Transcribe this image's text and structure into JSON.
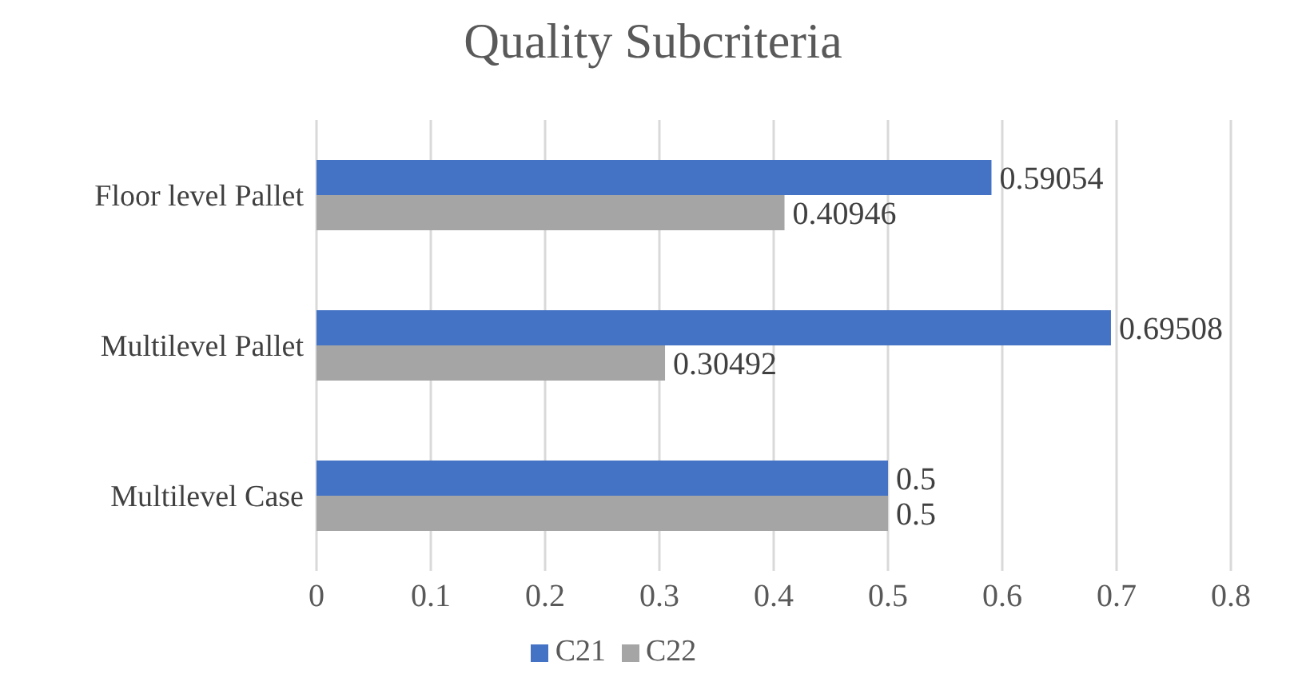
{
  "chart_data": {
    "type": "bar",
    "orientation": "horizontal",
    "title": "Quality Subcriteria",
    "categories": [
      "Floor level Pallet",
      "Multilevel Pallet",
      "Multilevel Case"
    ],
    "series": [
      {
        "name": "C21",
        "color": "#4472c4",
        "values": [
          0.59054,
          0.69508,
          0.5
        ]
      },
      {
        "name": "C22",
        "color": "#a5a5a5",
        "values": [
          0.40946,
          0.30492,
          0.5
        ]
      }
    ],
    "xlim": [
      0,
      0.8
    ],
    "xticks": [
      0,
      0.1,
      0.2,
      0.3,
      0.4,
      0.5,
      0.6,
      0.7,
      0.8
    ],
    "grid": "x",
    "legend": "bottom",
    "data_labels": true
  }
}
